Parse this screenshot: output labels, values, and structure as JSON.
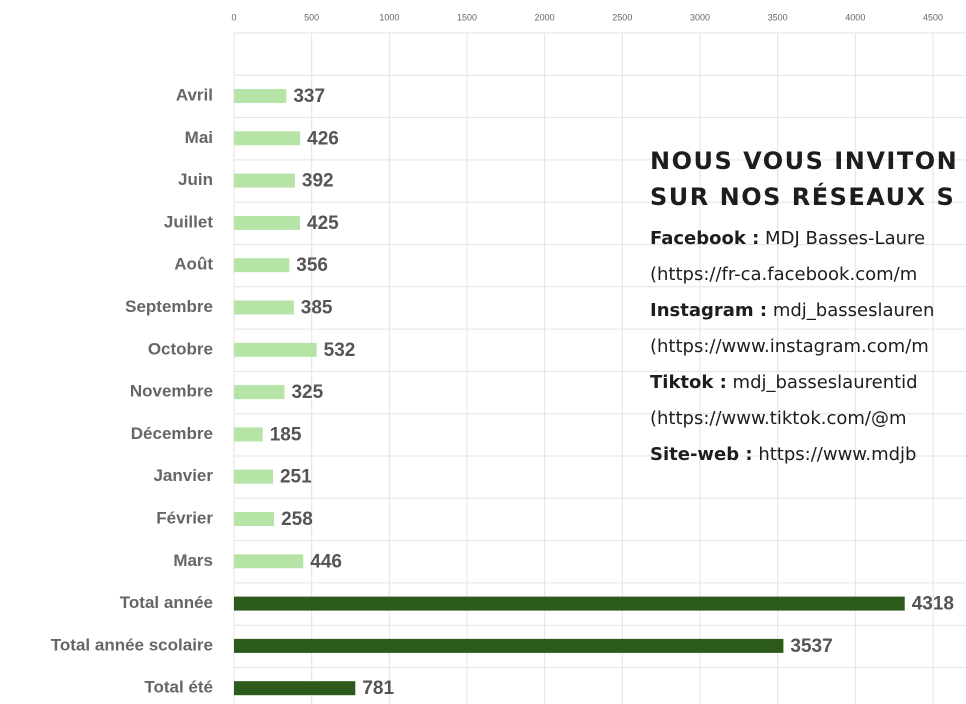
{
  "chart_data": {
    "type": "bar",
    "orientation": "horizontal",
    "categories": [
      "Avril",
      "Mai",
      "Juin",
      "Juillet",
      "Août",
      "Septembre",
      "Octobre",
      "Novembre",
      "Décembre",
      "Janvier",
      "Février",
      "Mars",
      "Total année",
      "Total année scolaire",
      "Total été"
    ],
    "values": [
      337,
      426,
      392,
      425,
      356,
      385,
      532,
      325,
      185,
      251,
      258,
      446,
      4318,
      3537,
      781
    ],
    "colors": [
      "#b6e4a7",
      "#b6e4a7",
      "#b6e4a7",
      "#b6e4a7",
      "#b6e4a7",
      "#b6e4a7",
      "#b6e4a7",
      "#b6e4a7",
      "#b6e4a7",
      "#b6e4a7",
      "#b6e4a7",
      "#b6e4a7",
      "#2c5a1a",
      "#2c5a1a",
      "#2c5a1a"
    ],
    "xlim": [
      0,
      5000
    ],
    "xticks": [
      0,
      500,
      1000,
      1500,
      2000,
      2500,
      3000,
      3500,
      4000,
      4500
    ],
    "grid": true
  },
  "overlay": {
    "heading": [
      "NOUS VOUS INVITON",
      "SUR NOS RÉSEAUX S"
    ],
    "lines": [
      {
        "label": "Facebook :",
        "text": " MDJ Basses-Laure"
      },
      {
        "text": "(https://fr-ca.facebook.com/m"
      },
      {
        "label": "Instagram :",
        "text": " mdj_basseslauren"
      },
      {
        "text": "(https://www.instagram.com/m"
      },
      {
        "label": "Tiktok :",
        "text": " mdj_basseslaurentid"
      },
      {
        "text": "(https://www.tiktok.com/@m"
      },
      {
        "label": "Site-web :",
        "text": " https://www.mdjb"
      }
    ]
  }
}
